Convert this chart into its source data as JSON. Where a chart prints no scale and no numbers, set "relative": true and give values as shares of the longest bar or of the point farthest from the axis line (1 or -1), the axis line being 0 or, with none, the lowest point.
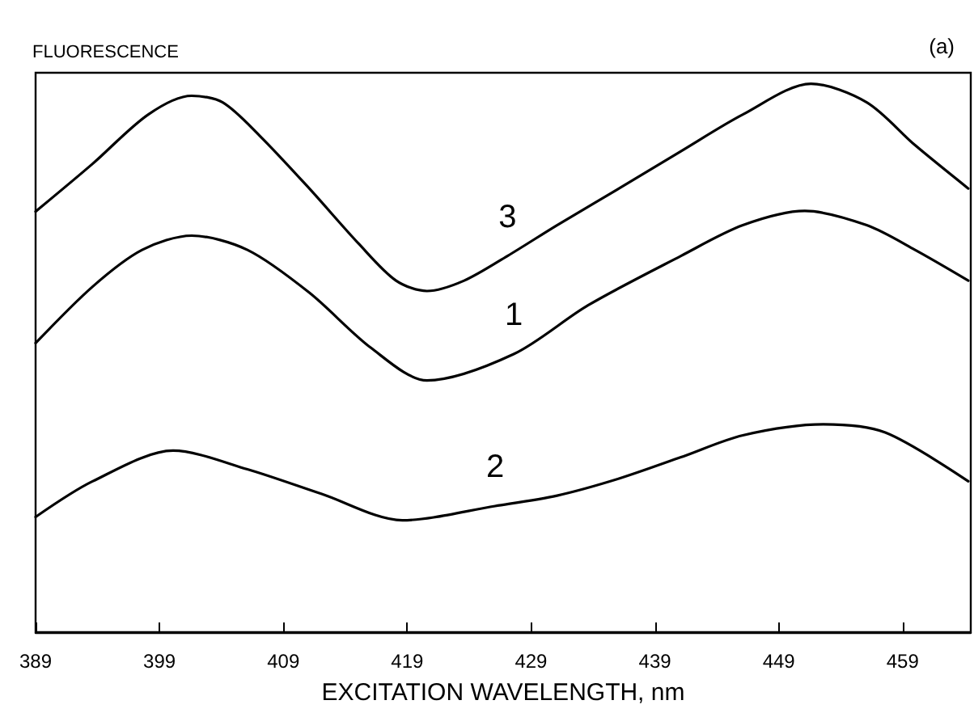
{
  "chart_data": {
    "type": "line",
    "relative": true,
    "ylabel": "FLUORESCENCE",
    "xlabel": "EXCITATION WAVELENGTH, nm",
    "annotations": [
      "(a)"
    ],
    "xlim": [
      389,
      464.5
    ],
    "xticks": [
      389,
      399,
      409,
      419,
      429,
      439,
      449,
      459
    ],
    "grid": false,
    "legend": false,
    "marker": "none",
    "line_style": "solid",
    "series": [
      {
        "name": "3",
        "color": "#000000",
        "x": [
          389,
          393.6,
          398.1,
          401.6,
          404.1,
          407.1,
          411.1,
          415.1,
          418.1,
          420.6,
          423.6,
          427.1,
          431.1,
          436.1,
          441.1,
          446.1,
          451.6,
          456.1,
          460.0,
          464.3
        ],
        "values": [
          0.767,
          0.854,
          0.944,
          0.978,
          0.966,
          0.905,
          0.809,
          0.708,
          0.641,
          0.622,
          0.641,
          0.686,
          0.742,
          0.809,
          0.877,
          0.944,
          1.0,
          0.966,
          0.888,
          0.809
        ]
      },
      {
        "name": "1",
        "color": "#000000",
        "x": [
          389,
          393.6,
          397.6,
          401.6,
          406.1,
          411.1,
          416.1,
          420.6,
          427.6,
          433.6,
          441.1,
          446.1,
          451.1,
          456.1,
          460.0,
          464.3
        ],
        "values": [
          0.527,
          0.63,
          0.697,
          0.723,
          0.697,
          0.619,
          0.518,
          0.459,
          0.507,
          0.596,
          0.686,
          0.742,
          0.768,
          0.742,
          0.697,
          0.641
        ]
      },
      {
        "name": "2",
        "color": "#000000",
        "x": [
          389,
          393.6,
          400.1,
          406.1,
          412.1,
          418.6,
          426.1,
          431.1,
          436.1,
          441.1,
          446.1,
          452.6,
          457.6,
          464.3
        ],
        "values": [
          0.21,
          0.275,
          0.331,
          0.297,
          0.252,
          0.204,
          0.23,
          0.249,
          0.28,
          0.319,
          0.359,
          0.379,
          0.364,
          0.275
        ]
      }
    ]
  }
}
